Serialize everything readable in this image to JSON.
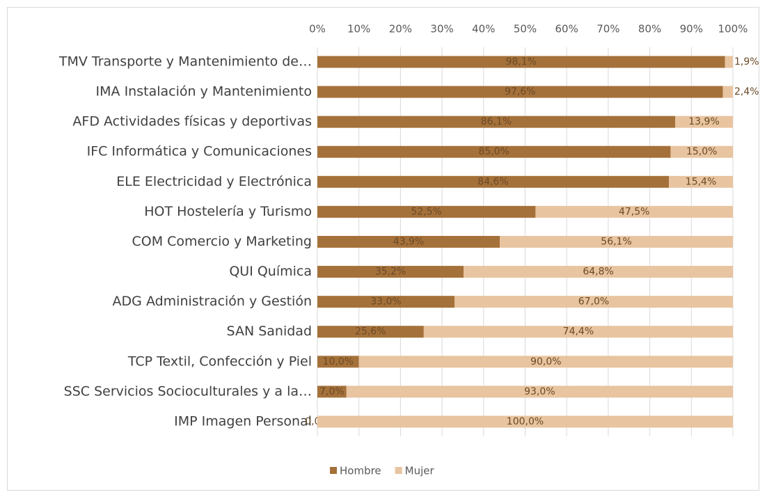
{
  "chart_data": {
    "type": "stacked_bar_horizontal",
    "categories": [
      "TMV Transporte y Mantenimiento de…",
      "IMA Instalación y Mantenimiento",
      "AFD Actividades físicas y deportivas",
      "IFC Informática y Comunicaciones",
      "ELE Electricidad y Electrónica",
      "HOT Hostelería y Turismo",
      "COM Comercio y Marketing",
      "QUI Química",
      "ADG Administración y Gestión",
      "SAN Sanidad",
      "TCP Textil, Confección y Piel",
      "SSC Servicios Socioculturales y a la…",
      "IMP Imagen Personal"
    ],
    "series": [
      {
        "name": "Hombre",
        "color": "#a5713a",
        "values": [
          98.1,
          97.6,
          86.1,
          85.0,
          84.6,
          52.5,
          43.9,
          35.2,
          33.0,
          25.6,
          10.0,
          7.0,
          0.0
        ],
        "value_labels": [
          "98,1%",
          "97,6%",
          "86,1%",
          "85,0%",
          "84,6%",
          "52,5%",
          "43,9%",
          "35,2%",
          "33,0%",
          "25,6%",
          "10,0%",
          "7,0%",
          "0,0%"
        ]
      },
      {
        "name": "Mujer",
        "color": "#e8c4a0",
        "values": [
          1.9,
          2.4,
          13.9,
          15.0,
          15.4,
          47.5,
          56.1,
          64.8,
          67.0,
          74.4,
          90.0,
          93.0,
          100.0
        ],
        "value_labels": [
          "1,9%",
          "2,4%",
          "13,9%",
          "15,0%",
          "15,4%",
          "47,5%",
          "56,1%",
          "64,8%",
          "67,0%",
          "74,4%",
          "90,0%",
          "93,0%",
          "100,0%"
        ]
      }
    ],
    "xlim": [
      0,
      100
    ],
    "xticks": [
      {
        "value": 0,
        "label": "0%"
      },
      {
        "value": 10,
        "label": "10%"
      },
      {
        "value": 20,
        "label": "20%"
      },
      {
        "value": 30,
        "label": "30%"
      },
      {
        "value": 40,
        "label": "40%"
      },
      {
        "value": 50,
        "label": "50%"
      },
      {
        "value": 60,
        "label": "60%"
      },
      {
        "value": 70,
        "label": "70%"
      },
      {
        "value": 80,
        "label": "80%"
      },
      {
        "value": 90,
        "label": "90%"
      },
      {
        "value": 100,
        "label": "100%"
      }
    ],
    "grid": true,
    "legend": "bottom"
  }
}
